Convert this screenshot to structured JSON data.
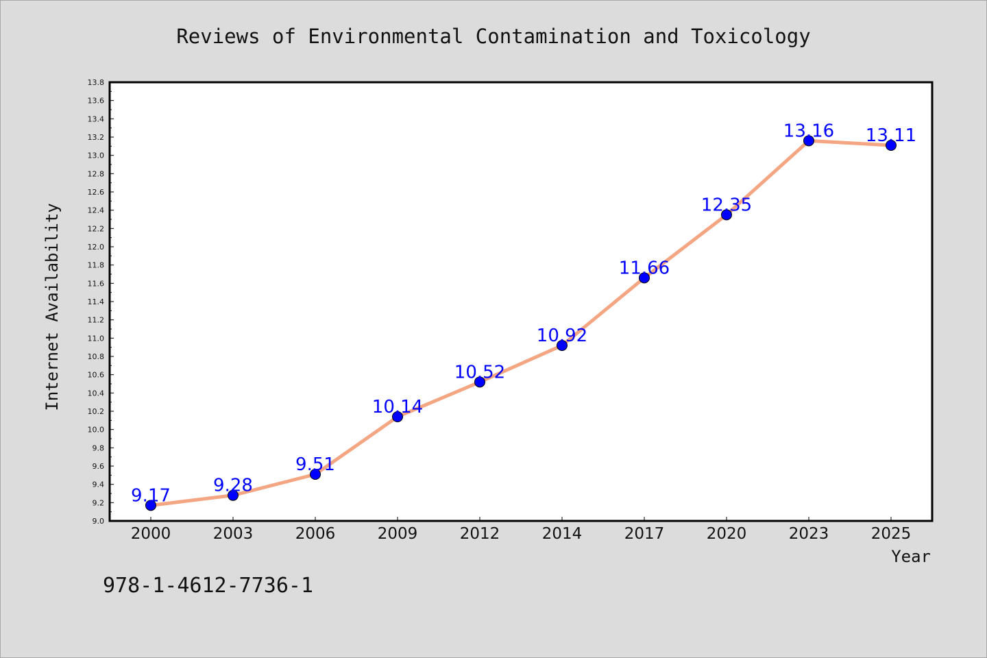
{
  "chart_data": {
    "type": "line",
    "title": "Reviews of Environmental Contamination and Toxicology",
    "xlabel": "Year",
    "ylabel": "Internet Availability",
    "categories": [
      "2000",
      "2003",
      "2006",
      "2009",
      "2012",
      "2014",
      "2017",
      "2020",
      "2023",
      "2025"
    ],
    "series": [
      {
        "values": [
          9.17,
          9.28,
          9.51,
          10.14,
          10.52,
          10.92,
          11.66,
          12.35,
          13.16,
          13.11
        ],
        "labels": [
          "9.17",
          "9.28",
          "9.51",
          "10.14",
          "10.52",
          "10.92",
          "11.66",
          "12.35",
          "13.16",
          "13.11"
        ],
        "line_color": "#f4a582",
        "marker_color": "#0000ff",
        "label_color": "#0000ff"
      }
    ],
    "ylim": [
      9.0,
      13.8
    ],
    "yticks": [
      "9.0",
      "9.2",
      "9.4",
      "9.6",
      "9.8",
      "10.0",
      "10.2",
      "10.4",
      "10.6",
      "10.8",
      "11.0",
      "11.2",
      "11.4",
      "11.6",
      "11.8",
      "12.0",
      "12.2",
      "12.4",
      "12.6",
      "12.8",
      "13.0",
      "13.2",
      "13.4",
      "13.6",
      "13.8"
    ],
    "grid": false,
    "legend": "none"
  },
  "footer": {
    "isbn": "978-1-4612-7736-1"
  },
  "colors": {
    "background": "#dcdcdc",
    "plot_background": "#ffffff",
    "axis": "#000000"
  }
}
